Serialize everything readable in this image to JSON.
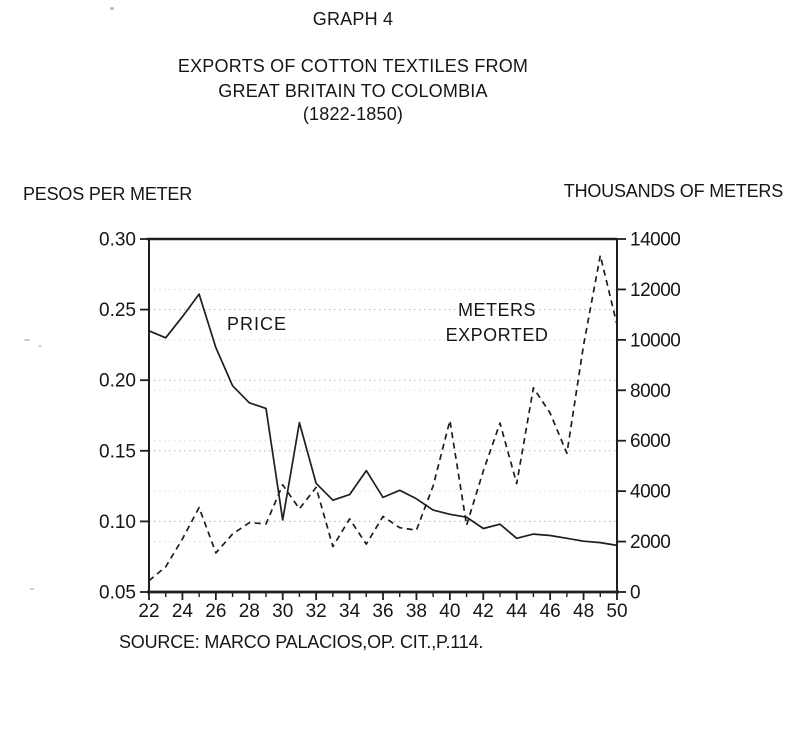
{
  "document": {
    "graph_label": "GRAPH 4",
    "title_line1": "EXPORTS OF COTTON TEXTILES FROM",
    "title_line2": "GREAT BRITAIN TO COLOMBIA",
    "title_line3": "(1822-1850)",
    "left_axis_header": "PESOS PER METER",
    "right_axis_header": "THOUSANDS OF METERS",
    "annotation_price": "PRICE",
    "annotation_meters_line1": "METERS",
    "annotation_meters_line2": "EXPORTED",
    "source": "SOURCE: MARCO PALACIOS,OP. CIT.,P.114.",
    "ink_color": "#1e1e1e",
    "background_color": "#ffffff"
  },
  "chart_data": {
    "type": "line",
    "title": "GRAPH 4",
    "subtitle": "EXPORTS OF COTTON TEXTILES FROM GREAT BRITAIN TO COLOMBIA (1822-1850)",
    "grid": "faint dotted horizontal gridlines at axis ticks",
    "legend_position": "inline text annotations (PRICE left, METERS EXPORTED right)",
    "ink_color": "#1e1e1e",
    "x_axis": {
      "range": [
        22,
        50
      ],
      "tick_labels": [
        22,
        24,
        26,
        28,
        30,
        32,
        34,
        36,
        38,
        40,
        42,
        44,
        46,
        48,
        50
      ],
      "minor_ticks": [
        23,
        25,
        27,
        29,
        31,
        33,
        35,
        37,
        39,
        41,
        43,
        45,
        47,
        49
      ],
      "meaning": "years 1822-1850"
    },
    "left_axis": {
      "label": "PESOS PER METER",
      "range": [
        0.05,
        0.3
      ],
      "tick_labels": [
        "0.30",
        "0.25",
        "0.20",
        "0.15",
        "0.10",
        "0.05"
      ]
    },
    "right_axis": {
      "label": "THOUSANDS OF METERS",
      "range": [
        0,
        14000
      ],
      "tick_labels": [
        "14000",
        "12000",
        "10000",
        "8000",
        "6000",
        "4000",
        "2000",
        "0"
      ]
    },
    "x": [
      22,
      23,
      24,
      25,
      26,
      27,
      28,
      29,
      30,
      31,
      32,
      33,
      34,
      35,
      36,
      37,
      38,
      39,
      40,
      41,
      42,
      43,
      44,
      45,
      46,
      47,
      48,
      49,
      50
    ],
    "series": [
      {
        "name": "PRICE",
        "axis": "left",
        "line_style": "solid",
        "values": [
          0.235,
          0.23,
          0.245,
          0.261,
          0.223,
          0.196,
          0.184,
          0.18,
          0.101,
          0.17,
          0.127,
          0.115,
          0.119,
          0.136,
          0.117,
          0.122,
          0.116,
          0.108,
          0.105,
          0.103,
          0.095,
          0.098,
          0.088,
          0.091,
          0.09,
          0.088,
          0.086,
          0.085,
          0.083
        ]
      },
      {
        "name": "METERS EXPORTED",
        "axis": "right",
        "line_style": "dashed",
        "values": [
          450,
          1000,
          2100,
          3350,
          1550,
          2300,
          2750,
          2700,
          4250,
          3300,
          4150,
          1800,
          2900,
          1900,
          3000,
          2550,
          2450,
          4200,
          6800,
          2650,
          4800,
          6700,
          4300,
          8100,
          7100,
          5500,
          9800,
          13350,
          10600
        ]
      }
    ],
    "source": "SOURCE: MARCO PALACIOS,OP. CIT.,P.114."
  }
}
